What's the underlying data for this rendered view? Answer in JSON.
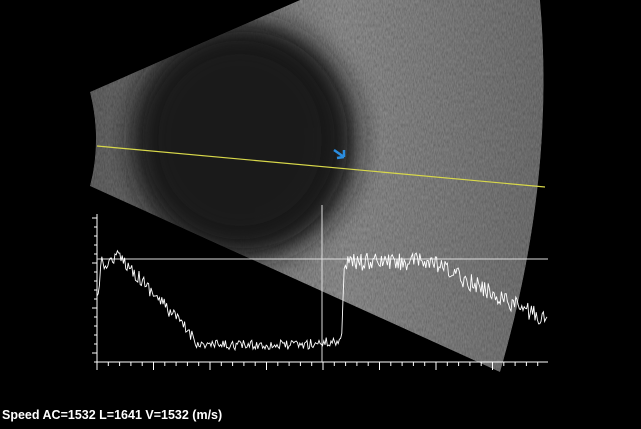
{
  "footer": {
    "speed_label": "Speed AC=1532 L=1641 V=1532 (m/s)"
  }
}
